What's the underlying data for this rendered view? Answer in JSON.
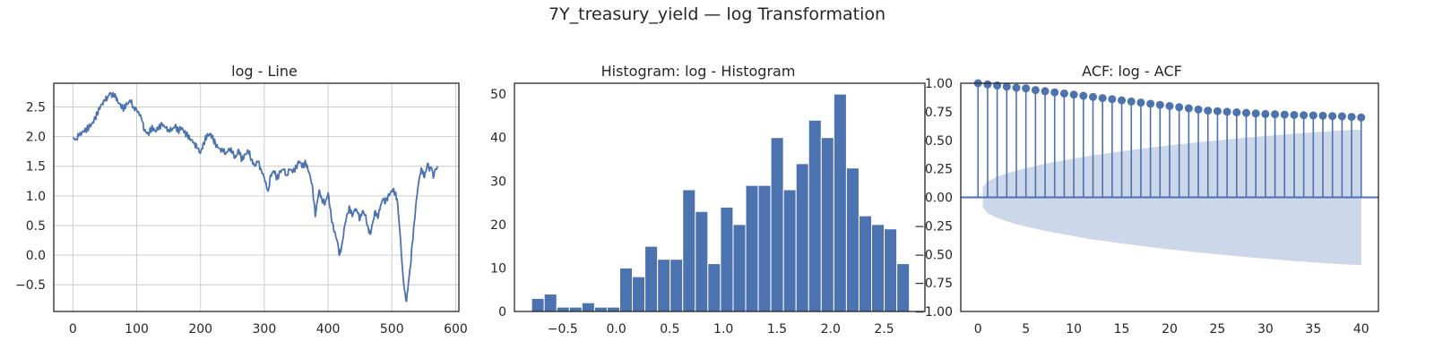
{
  "figure": {
    "title": "7Y_treasury_yield — log Transformation"
  },
  "chart_data": [
    {
      "type": "line",
      "title": "log - Line",
      "xlim": [
        -30,
        605
      ],
      "ylim": [
        -0.95,
        2.9
      ],
      "xticks": [
        0,
        100,
        200,
        300,
        400,
        500,
        600
      ],
      "yticks": [
        -0.5,
        0.0,
        0.5,
        1.0,
        1.5,
        2.0,
        2.5
      ],
      "grid": true,
      "color": "#4c72b0",
      "anchors": [
        [
          0,
          1.97
        ],
        [
          5,
          1.96
        ],
        [
          10,
          2.02
        ],
        [
          15,
          2.08
        ],
        [
          20,
          2.12
        ],
        [
          25,
          2.15
        ],
        [
          30,
          2.22
        ],
        [
          35,
          2.3
        ],
        [
          40,
          2.45
        ],
        [
          45,
          2.55
        ],
        [
          50,
          2.6
        ],
        [
          55,
          2.68
        ],
        [
          58,
          2.74
        ],
        [
          62,
          2.68
        ],
        [
          66,
          2.72
        ],
        [
          70,
          2.6
        ],
        [
          75,
          2.52
        ],
        [
          80,
          2.48
        ],
        [
          85,
          2.55
        ],
        [
          90,
          2.6
        ],
        [
          95,
          2.5
        ],
        [
          100,
          2.45
        ],
        [
          105,
          2.35
        ],
        [
          108,
          2.28
        ],
        [
          112,
          2.1
        ],
        [
          118,
          2.05
        ],
        [
          125,
          2.15
        ],
        [
          130,
          2.08
        ],
        [
          135,
          2.18
        ],
        [
          140,
          2.2
        ],
        [
          145,
          2.15
        ],
        [
          150,
          2.12
        ],
        [
          155,
          2.1
        ],
        [
          160,
          2.18
        ],
        [
          165,
          2.1
        ],
        [
          170,
          2.15
        ],
        [
          175,
          2.08
        ],
        [
          180,
          2.0
        ],
        [
          185,
          1.95
        ],
        [
          190,
          1.9
        ],
        [
          195,
          1.8
        ],
        [
          200,
          1.72
        ],
        [
          205,
          1.9
        ],
        [
          210,
          2.0
        ],
        [
          215,
          2.05
        ],
        [
          220,
          1.95
        ],
        [
          225,
          1.85
        ],
        [
          230,
          1.8
        ],
        [
          235,
          1.75
        ],
        [
          240,
          1.72
        ],
        [
          245,
          1.8
        ],
        [
          250,
          1.72
        ],
        [
          255,
          1.65
        ],
        [
          260,
          1.78
        ],
        [
          265,
          1.6
        ],
        [
          270,
          1.7
        ],
        [
          275,
          1.75
        ],
        [
          280,
          1.62
        ],
        [
          285,
          1.5
        ],
        [
          290,
          1.58
        ],
        [
          295,
          1.45
        ],
        [
          300,
          1.3
        ],
        [
          303,
          1.2
        ],
        [
          306,
          1.08
        ],
        [
          310,
          1.35
        ],
        [
          315,
          1.42
        ],
        [
          320,
          1.3
        ],
        [
          325,
          1.4
        ],
        [
          330,
          1.45
        ],
        [
          335,
          1.35
        ],
        [
          340,
          1.45
        ],
        [
          345,
          1.4
        ],
        [
          350,
          1.5
        ],
        [
          355,
          1.58
        ],
        [
          360,
          1.5
        ],
        [
          365,
          1.55
        ],
        [
          370,
          1.4
        ],
        [
          375,
          1.2
        ],
        [
          378,
          0.9
        ],
        [
          380,
          0.65
        ],
        [
          383,
          0.9
        ],
        [
          386,
          1.1
        ],
        [
          390,
          0.95
        ],
        [
          395,
          0.85
        ],
        [
          400,
          1.05
        ],
        [
          403,
          0.8
        ],
        [
          406,
          0.55
        ],
        [
          410,
          0.4
        ],
        [
          414,
          0.25
        ],
        [
          418,
          0.0
        ],
        [
          422,
          0.2
        ],
        [
          426,
          0.5
        ],
        [
          430,
          0.7
        ],
        [
          434,
          0.8
        ],
        [
          438,
          0.65
        ],
        [
          442,
          0.78
        ],
        [
          446,
          0.72
        ],
        [
          450,
          0.6
        ],
        [
          454,
          0.75
        ],
        [
          458,
          0.68
        ],
        [
          462,
          0.5
        ],
        [
          466,
          0.35
        ],
        [
          470,
          0.55
        ],
        [
          474,
          0.75
        ],
        [
          478,
          0.62
        ],
        [
          482,
          0.82
        ],
        [
          486,
          0.95
        ],
        [
          490,
          0.88
        ],
        [
          494,
          1.0
        ],
        [
          498,
          1.05
        ],
        [
          502,
          1.12
        ],
        [
          505,
          1.05
        ],
        [
          508,
          0.95
        ],
        [
          511,
          0.6
        ],
        [
          514,
          0.2
        ],
        [
          517,
          -0.3
        ],
        [
          520,
          -0.6
        ],
        [
          523,
          -0.78
        ],
        [
          526,
          -0.45
        ],
        [
          529,
          -0.2
        ],
        [
          532,
          0.2
        ],
        [
          535,
          0.55
        ],
        [
          538,
          0.9
        ],
        [
          541,
          1.15
        ],
        [
          544,
          1.35
        ],
        [
          547,
          1.45
        ],
        [
          550,
          1.32
        ],
        [
          553,
          1.4
        ],
        [
          556,
          1.55
        ],
        [
          559,
          1.42
        ],
        [
          562,
          1.48
        ],
        [
          565,
          1.3
        ],
        [
          568,
          1.45
        ],
        [
          572,
          1.48
        ]
      ]
    },
    {
      "type": "bar",
      "title": "Histogram: log - Histogram",
      "xlim": [
        -0.95,
        2.88
      ],
      "ylim": [
        0,
        52.5
      ],
      "xticks": [
        -0.5,
        0.0,
        0.5,
        1.0,
        1.5,
        2.0,
        2.5
      ],
      "yticks": [
        0,
        10,
        20,
        30,
        40,
        50
      ],
      "grid": false,
      "color": "#4c72b0",
      "bin_start": -0.79,
      "bin_width": 0.1175,
      "values": [
        3,
        4,
        1,
        1,
        2,
        1,
        1,
        10,
        8,
        15,
        12,
        12,
        28,
        23,
        11,
        24,
        20,
        29,
        29,
        40,
        28,
        34,
        44,
        40,
        50,
        33,
        22,
        20,
        19,
        11
      ]
    },
    {
      "type": "bar",
      "title": "ACF: log - ACF",
      "xlim": [
        -1.8,
        41.8
      ],
      "ylim": [
        -1.0,
        1.0
      ],
      "xticks": [
        0,
        5,
        10,
        15,
        20,
        25,
        30,
        35,
        40
      ],
      "yticks": [
        -1.0,
        -0.75,
        -0.5,
        -0.25,
        0.0,
        0.25,
        0.5,
        0.75,
        1.0
      ],
      "grid": false,
      "color": "#4c72b0",
      "confidence_color": "#cdd7ea",
      "lags": [
        0,
        1,
        2,
        3,
        4,
        5,
        6,
        7,
        8,
        9,
        10,
        11,
        12,
        13,
        14,
        15,
        16,
        17,
        18,
        19,
        20,
        21,
        22,
        23,
        24,
        25,
        26,
        27,
        28,
        29,
        30,
        31,
        32,
        33,
        34,
        35,
        36,
        37,
        38,
        39,
        40
      ],
      "values": [
        1.0,
        0.99,
        0.98,
        0.97,
        0.96,
        0.955,
        0.94,
        0.93,
        0.92,
        0.91,
        0.9,
        0.89,
        0.88,
        0.87,
        0.86,
        0.85,
        0.84,
        0.83,
        0.82,
        0.81,
        0.8,
        0.79,
        0.78,
        0.77,
        0.76,
        0.755,
        0.75,
        0.745,
        0.74,
        0.735,
        0.73,
        0.728,
        0.725,
        0.722,
        0.72,
        0.718,
        0.715,
        0.712,
        0.71,
        0.705,
        0.7
      ],
      "confidence_band": [
        0.09,
        0.14,
        0.18,
        0.21,
        0.235,
        0.255,
        0.275,
        0.295,
        0.31,
        0.325,
        0.34,
        0.355,
        0.37,
        0.38,
        0.392,
        0.404,
        0.415,
        0.426,
        0.436,
        0.446,
        0.456,
        0.465,
        0.474,
        0.483,
        0.491,
        0.499,
        0.507,
        0.515,
        0.523,
        0.53,
        0.537,
        0.544,
        0.551,
        0.558,
        0.564,
        0.57,
        0.576,
        0.581,
        0.586,
        0.59,
        0.594
      ]
    }
  ]
}
